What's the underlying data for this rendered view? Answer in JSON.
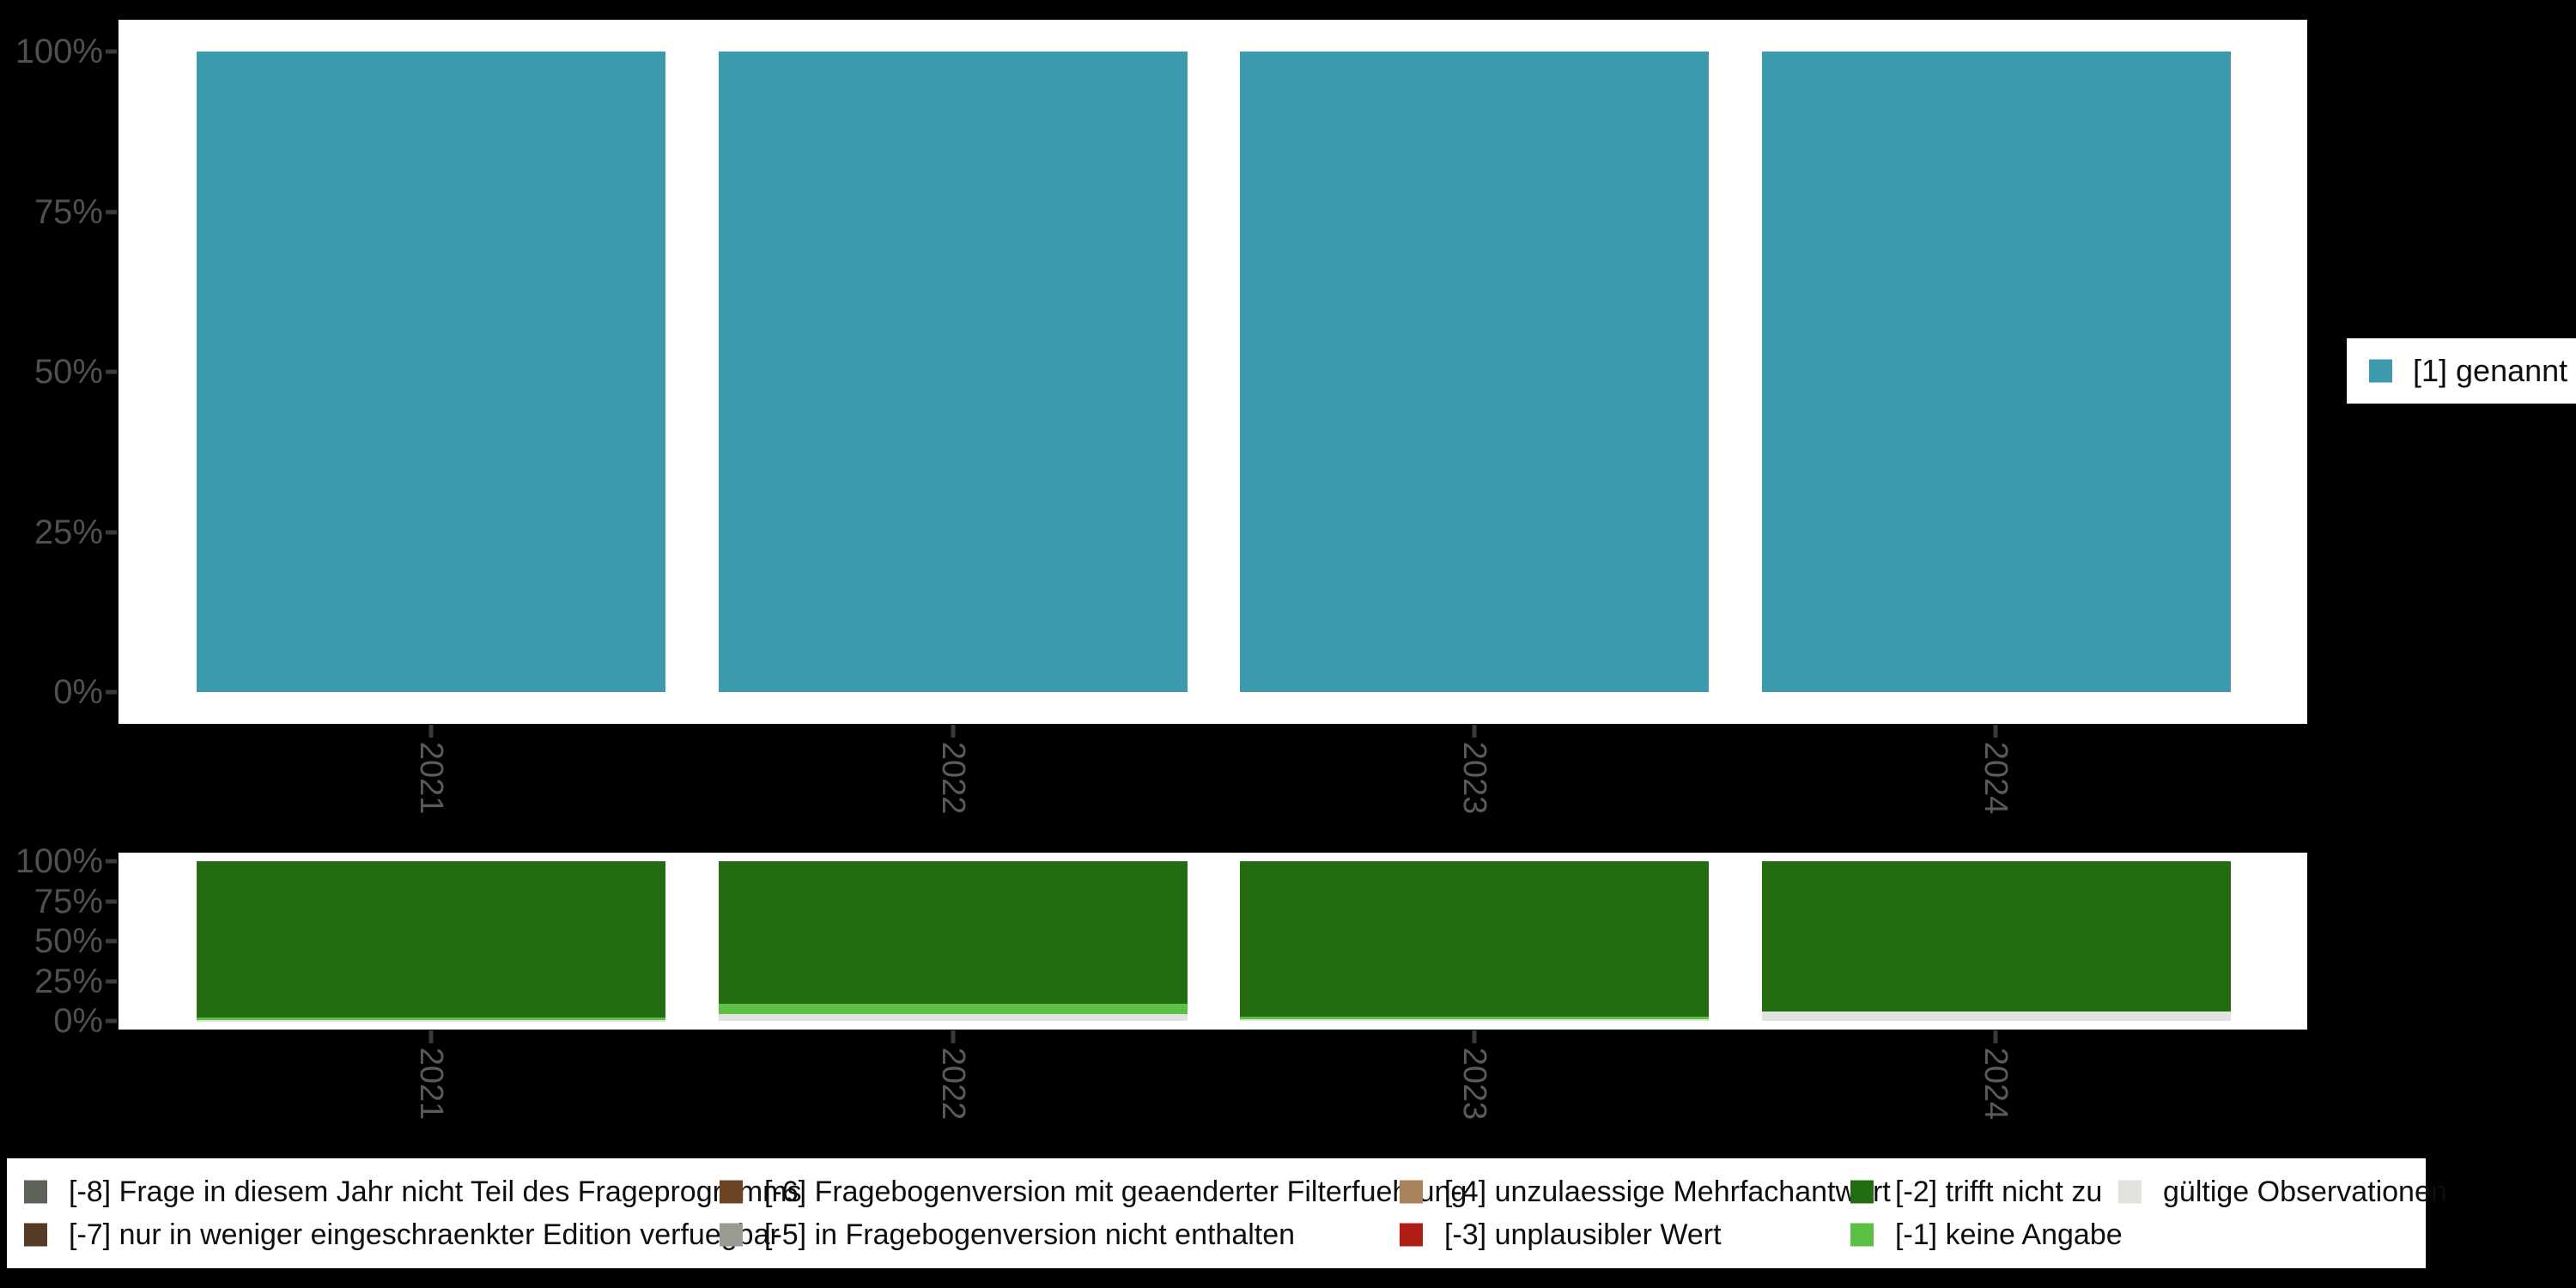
{
  "colors": {
    "mentioned_teal": "#3d9aad",
    "missing_minus8_slate": "#5d6359",
    "missing_minus7_darkbrown": "#573a23",
    "missing_minus6_brown": "#6d4524",
    "missing_minus5_gray": "#9a9b93",
    "missing_minus4_tan": "#a9815a",
    "missing_minus3_red": "#b01d15",
    "missing_minus2_darkgreen": "#236c11",
    "missing_minus1_lightgreen": "#5cc044",
    "valid_obs_lightgray": "#e0e4dc",
    "background": "#000000",
    "plot_background": "#ffffff",
    "axis_label_gray": "#505050",
    "year_label_gray": "#5a5a5a",
    "tick_mark_gray": "#3a3a3a",
    "legend_text": "#0d0d0d"
  },
  "axes": {
    "y_labels_top_to_bottom": [
      "100%",
      "75%",
      "50%",
      "25%",
      "0%"
    ]
  },
  "right_legend": {
    "items": [
      {
        "label": "[1] genannt",
        "color": "#3d9aad"
      }
    ]
  },
  "bottom_legend": {
    "items": [
      {
        "label": "[-8] Frage in diesem Jahr nicht Teil des Frageprogramms",
        "color": "#5d6359"
      },
      {
        "label": "[-7] nur in weniger eingeschraenkter Edition verfuegbar",
        "color": "#573a23"
      },
      {
        "label": "[-6] Fragebogenversion mit geaenderter Filterfuehrung",
        "color": "#6d4524"
      },
      {
        "label": "[-5] in Fragebogenversion nicht enthalten",
        "color": "#9a9b93"
      },
      {
        "label": "[-4] unzulaessige Mehrfachantwort",
        "color": "#a9815a"
      },
      {
        "label": "[-3] unplausibler Wert",
        "color": "#b01d15"
      },
      {
        "label": "[-2] trifft nicht zu",
        "color": "#236c11"
      },
      {
        "label": "[-1] keine Angabe",
        "color": "#5cc044"
      },
      {
        "label": "gültige Observationen",
        "color": "#e0e4dc"
      }
    ]
  },
  "chart_data": [
    {
      "type": "bar",
      "title": "",
      "stacked": false,
      "categories": [
        "2021",
        "2022",
        "2023",
        "2024"
      ],
      "series": [
        {
          "name": "[1] genannt",
          "color": "#3d9aad",
          "values": [
            100,
            100,
            100,
            100
          ]
        }
      ],
      "xlabel": "",
      "ylabel": "",
      "yticks": [
        "0%",
        "25%",
        "50%",
        "75%",
        "100%"
      ],
      "ylim": [
        0,
        100
      ],
      "grid": false,
      "legend_position": "right"
    },
    {
      "type": "bar",
      "title": "",
      "stacked": true,
      "categories": [
        "2021",
        "2022",
        "2023",
        "2024"
      ],
      "series": [
        {
          "name": "[-2] trifft nicht zu",
          "color": "#236c11",
          "values": [
            97.9,
            89.2,
            97.3,
            94.1
          ]
        },
        {
          "name": "[-1] keine Angabe",
          "color": "#5cc044",
          "values": [
            1.6,
            6.5,
            1.6,
            0
          ]
        },
        {
          "name": "gültige Observationen",
          "color": "#e0e4dc",
          "values": [
            0.5,
            4.3,
            1.1,
            5.9
          ]
        }
      ],
      "xlabel": "",
      "ylabel": "",
      "yticks": [
        "0%",
        "25%",
        "50%",
        "75%",
        "100%"
      ],
      "ylim": [
        0,
        100
      ],
      "grid": false,
      "legend_position": "bottom"
    }
  ]
}
